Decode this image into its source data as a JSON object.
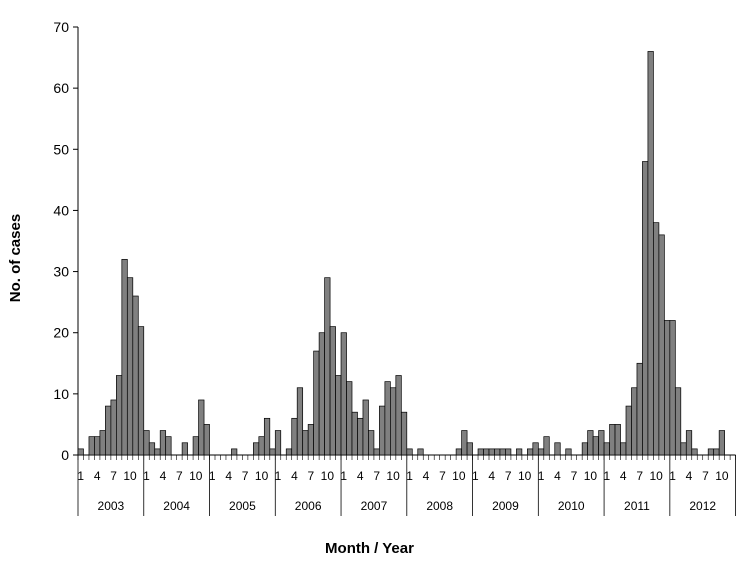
{
  "chart_data": {
    "type": "bar",
    "ylabel": "No.  of  cases",
    "xlabel": "Month / Year",
    "ylim": [
      0,
      70
    ],
    "yticks": [
      "0",
      "10",
      "20",
      "30",
      "40",
      "50",
      "60",
      "70"
    ],
    "month_tick_labels": [
      "1",
      "4",
      "7",
      "10"
    ],
    "years": [
      "2003",
      "2004",
      "2005",
      "2006",
      "2007",
      "2008",
      "2009",
      "2010",
      "2011",
      "2012"
    ],
    "bar_color": "#808080",
    "values": [
      1,
      0,
      3,
      3,
      4,
      8,
      9,
      13,
      32,
      29,
      26,
      21,
      4,
      2,
      1,
      4,
      3,
      0,
      0,
      2,
      0,
      3,
      9,
      5,
      0,
      0,
      0,
      0,
      1,
      0,
      0,
      0,
      2,
      3,
      6,
      1,
      4,
      0,
      1,
      6,
      11,
      4,
      5,
      17,
      20,
      29,
      21,
      13,
      20,
      12,
      7,
      6,
      9,
      4,
      1,
      8,
      12,
      11,
      13,
      7,
      1,
      0,
      1,
      0,
      0,
      0,
      0,
      0,
      0,
      1,
      4,
      2,
      0,
      1,
      1,
      1,
      1,
      1,
      1,
      0,
      1,
      0,
      1,
      2,
      1,
      3,
      0,
      2,
      0,
      1,
      0,
      0,
      2,
      4,
      3,
      4,
      2,
      5,
      5,
      2,
      8,
      11,
      15,
      48,
      66,
      38,
      36,
      22,
      22,
      11,
      2,
      4,
      1,
      0,
      0,
      1,
      1,
      4,
      0,
      0
    ]
  }
}
